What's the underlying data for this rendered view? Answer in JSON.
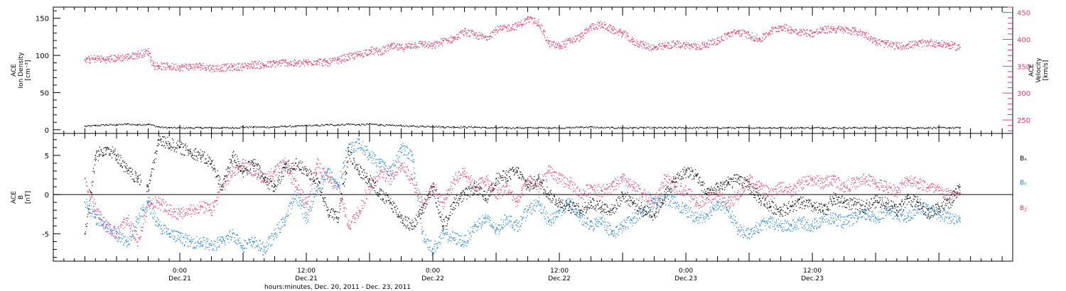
{
  "colors": {
    "black": "#000000",
    "pink": "#e63c6b",
    "blue": "#1a7fdc"
  },
  "chart_data": [
    {
      "type": "scatter",
      "panel": "top",
      "ylabel_lines": [
        "ACE",
        "Ion Density",
        "[cm⁻³]"
      ],
      "ylim": [
        -5,
        165
      ],
      "yticks": [
        0,
        50,
        100,
        150
      ],
      "y2label_lines": [
        "ACE",
        "Velocity",
        "[km/s]"
      ],
      "y2lim": [
        225,
        460
      ],
      "y2ticks": [
        250,
        300,
        350,
        400,
        450
      ],
      "series": [
        {
          "name": "",
          "axis": "left",
          "color": "#000000",
          "x": [
            0,
            2,
            4,
            6,
            8,
            10,
            12,
            14,
            16,
            18,
            20,
            22,
            24,
            26,
            28,
            30,
            32,
            34,
            36,
            38,
            40,
            42,
            44,
            46,
            48,
            50,
            52,
            54,
            56,
            58,
            60,
            62,
            64,
            66,
            68,
            70,
            72,
            74,
            76,
            78,
            80,
            82,
            84,
            86,
            88,
            90,
            92,
            94,
            96,
            98,
            100,
            102,
            104,
            106,
            108,
            110,
            112,
            114,
            116,
            118,
            120,
            122,
            124,
            126,
            128,
            130,
            132,
            134,
            136,
            138,
            140,
            142,
            144,
            146,
            148,
            150,
            152,
            154,
            156,
            158,
            160,
            162,
            164,
            166
          ],
          "y": [
            5,
            6,
            7,
            7,
            8,
            7,
            8,
            4,
            3,
            3,
            3,
            3,
            3,
            3,
            3,
            4,
            4,
            4,
            4,
            5,
            5,
            6,
            6,
            7,
            7,
            8,
            7,
            8,
            7,
            6,
            6,
            5,
            5,
            5,
            4,
            4,
            4,
            4,
            3,
            3,
            3,
            3,
            3,
            3,
            3,
            3,
            3,
            4,
            4,
            3,
            3,
            3,
            3,
            3,
            3,
            3,
            3,
            3,
            3,
            3,
            3,
            3,
            3,
            3,
            3,
            3,
            3,
            3,
            3,
            3,
            3,
            3,
            3,
            3,
            3,
            3,
            3,
            3,
            3,
            3,
            3,
            3,
            3,
            3
          ]
        },
        {
          "name": "",
          "axis": "right",
          "color": "#e63c6b",
          "x": [
            0,
            2,
            4,
            6,
            8,
            10,
            12,
            13,
            14,
            16,
            18,
            20,
            22,
            24,
            26,
            28,
            30,
            32,
            34,
            36,
            38,
            40,
            42,
            44,
            46,
            48,
            50,
            52,
            54,
            56,
            58,
            60,
            62,
            64,
            66,
            68,
            70,
            72,
            74,
            76,
            78,
            80,
            82,
            84,
            86,
            88,
            90,
            92,
            94,
            96,
            98,
            100,
            102,
            104,
            106,
            108,
            110,
            112,
            114,
            116,
            118,
            120,
            122,
            124,
            126,
            128,
            130,
            132,
            134,
            136,
            138,
            140,
            142,
            144,
            146,
            148,
            150,
            152,
            154,
            156,
            158,
            160,
            162,
            164,
            166
          ],
          "y": [
            362,
            365,
            363,
            366,
            368,
            372,
            378,
            352,
            351,
            350,
            349,
            350,
            351,
            347,
            348,
            349,
            350,
            354,
            352,
            356,
            358,
            355,
            357,
            360,
            357,
            362,
            368,
            372,
            380,
            378,
            387,
            385,
            390,
            392,
            388,
            398,
            402,
            415,
            408,
            404,
            418,
            422,
            426,
            438,
            432,
            392,
            388,
            398,
            405,
            424,
            428,
            418,
            412,
            396,
            390,
            384,
            388,
            392,
            390,
            386,
            392,
            398,
            410,
            414,
            408,
            400,
            416,
            424,
            418,
            414,
            412,
            418,
            420,
            418,
            416,
            410,
            396,
            392,
            388,
            390,
            392,
            395,
            392,
            390,
            385
          ]
        }
      ]
    },
    {
      "type": "scatter",
      "panel": "bottom",
      "ylabel_lines": [
        "ACE",
        "B",
        "[nT]"
      ],
      "ylim": [
        -8.5,
        7.8
      ],
      "yticks": [
        -5,
        0,
        5
      ],
      "legend_position": "right",
      "legend": [
        "Bₓ",
        "Bᵧ",
        "B𝓏"
      ],
      "series": [
        {
          "name": "Bₓ",
          "color": "#000000",
          "x": [
            0,
            2,
            4,
            6,
            8,
            10,
            12,
            14,
            16,
            18,
            20,
            22,
            24,
            26,
            28,
            30,
            32,
            34,
            36,
            38,
            40,
            42,
            44,
            46,
            48,
            50,
            52,
            54,
            56,
            58,
            60,
            62,
            64,
            66,
            68,
            70,
            72,
            74,
            76,
            78,
            80,
            82,
            84,
            86,
            88,
            90,
            92,
            94,
            96,
            98,
            100,
            102,
            104,
            106,
            108,
            110,
            112,
            114,
            116,
            118,
            120,
            122,
            124,
            126,
            128,
            130,
            132,
            134,
            136,
            138,
            140,
            142,
            144,
            146,
            148,
            150,
            152,
            154,
            156,
            158,
            160,
            162,
            164,
            166
          ],
          "y": [
            -5,
            5,
            6,
            5,
            3,
            2,
            1,
            7,
            6.5,
            6,
            5.5,
            5,
            4,
            1,
            5,
            3,
            4,
            2,
            1,
            3.5,
            4,
            3,
            2,
            -2,
            -3,
            5.5,
            3,
            2,
            0,
            -1,
            -3,
            -4,
            -2,
            1,
            -4,
            -1,
            0,
            1,
            -0.5,
            2,
            2.5,
            3,
            1,
            2,
            0,
            -1,
            -1.5,
            -2,
            -1,
            -1.5,
            -2,
            0,
            -1,
            -2,
            -2.5,
            0,
            2,
            3,
            2.5,
            0,
            1,
            1.5,
            2,
            1,
            -0.5,
            -1.5,
            -2,
            -1.5,
            -1,
            -1.5,
            -2,
            -0.5,
            -1,
            -1.2,
            -1.5,
            -0.8,
            -1,
            -2,
            -0.5,
            -1,
            -2.5,
            -1.5,
            -1,
            1
          ]
        },
        {
          "name": "Bᵧ",
          "color": "#1a7fdc",
          "x": [
            0,
            2,
            4,
            6,
            8,
            10,
            12,
            14,
            16,
            18,
            20,
            22,
            24,
            26,
            28,
            30,
            32,
            34,
            36,
            38,
            40,
            42,
            44,
            46,
            48,
            50,
            52,
            54,
            56,
            58,
            60,
            62,
            64,
            66,
            68,
            70,
            72,
            74,
            76,
            78,
            80,
            82,
            84,
            86,
            88,
            90,
            92,
            94,
            96,
            98,
            100,
            102,
            104,
            106,
            108,
            110,
            112,
            114,
            116,
            118,
            120,
            122,
            124,
            126,
            128,
            130,
            132,
            134,
            136,
            138,
            140,
            142,
            144,
            146,
            148,
            150,
            152,
            154,
            156,
            158,
            160,
            162,
            164,
            166
          ],
          "y": [
            -1,
            -3,
            -4,
            -5,
            -6,
            -3,
            -1,
            -4,
            -5,
            -5.5,
            -6,
            -6,
            -6.5,
            -6,
            -5,
            -6.5,
            -6,
            -7,
            -5,
            -3,
            0,
            -3,
            1,
            3,
            1,
            6,
            6.5,
            5,
            4,
            3,
            6,
            5,
            -5,
            -7,
            -5,
            -5.5,
            -6,
            -4,
            -3,
            -4.5,
            -3,
            -4,
            -2,
            -1,
            -3.5,
            -2,
            -1,
            -3,
            -4,
            -3,
            -5,
            -4,
            -3,
            -2,
            -1,
            -0.5,
            -1,
            -2,
            -3,
            -2.5,
            -1,
            -2,
            -4.5,
            -5,
            -4,
            -3.5,
            -4,
            -4,
            -3.5,
            -4,
            -3,
            -3,
            -3.5,
            -3,
            -2.5,
            -3,
            -2,
            -2.5,
            -3,
            -1.5,
            -2,
            -2.5,
            -3,
            -3
          ]
        },
        {
          "name": "B𝓏",
          "color": "#e63c6b",
          "x": [
            0,
            2,
            4,
            6,
            8,
            10,
            12,
            14,
            16,
            18,
            20,
            22,
            24,
            26,
            28,
            30,
            32,
            34,
            36,
            38,
            40,
            42,
            44,
            46,
            48,
            50,
            52,
            54,
            56,
            58,
            60,
            62,
            64,
            66,
            68,
            70,
            72,
            74,
            76,
            78,
            80,
            82,
            84,
            86,
            88,
            90,
            92,
            94,
            96,
            98,
            100,
            102,
            104,
            106,
            108,
            110,
            112,
            114,
            116,
            118,
            120,
            122,
            124,
            126,
            128,
            130,
            132,
            134,
            136,
            138,
            140,
            142,
            144,
            146,
            148,
            150,
            152,
            154,
            156,
            158,
            160,
            162,
            164,
            166
          ],
          "y": [
            2,
            -2,
            -4,
            -5,
            -3,
            -6,
            -1,
            -1,
            -2,
            -2.5,
            -2,
            -1.5,
            -2,
            1,
            3,
            4,
            3,
            2,
            3,
            4,
            1,
            -1,
            4,
            2,
            1,
            -4,
            -2,
            1,
            3,
            2,
            4,
            2,
            -1,
            1,
            -1,
            2,
            3,
            1,
            2,
            0,
            1,
            -1,
            2,
            1,
            3,
            2,
            1.5,
            0,
            1,
            0.5,
            1,
            2,
            1,
            0,
            -1,
            2,
            1,
            0.5,
            -1,
            -0.5,
            0,
            -1,
            0,
            2,
            1,
            0,
            1,
            0.5,
            1.5,
            2,
            1.5,
            2,
            1,
            1.5,
            2,
            1.5,
            1,
            0.5,
            2,
            1.5,
            1,
            0.5,
            0,
            0
          ]
        }
      ]
    }
  ],
  "xaxis": {
    "xlim": [
      -6,
      176
    ],
    "major_ticks": [
      {
        "x": 18,
        "time": "0:00",
        "date": "Dec.21"
      },
      {
        "x": 42,
        "time": "12:00",
        "date": "Dec.21"
      },
      {
        "x": 66,
        "time": "0:00",
        "date": "Dec.22"
      },
      {
        "x": 90,
        "time": "12:00",
        "date": "Dec.22"
      },
      {
        "x": 114,
        "time": "0:00",
        "date": "Dec.23"
      },
      {
        "x": 138,
        "time": "12:00",
        "date": "Dec.23"
      }
    ],
    "xlabel": "hours:minutes, Dec. 20, 2011 - Dec. 23, 2011"
  }
}
